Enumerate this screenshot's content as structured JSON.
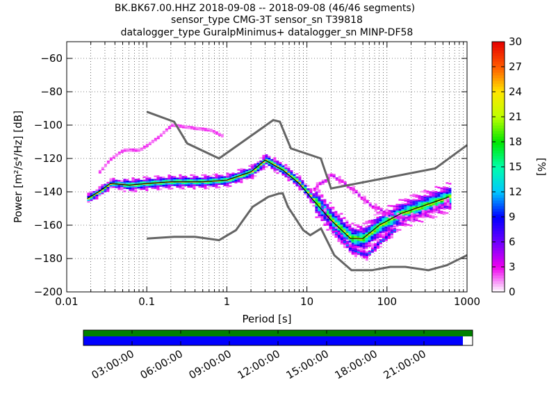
{
  "title": {
    "line1": "BK.BK67.00.HHZ   2018-09-08 -- 2018-09-08  (46/46 segments)",
    "line2": "sensor_type CMG-3T sensor_sn T39818",
    "line3": "datalogger_type GuralpMinimus+ datalogger_sn MINP-DF58"
  },
  "colors": {
    "model_lines": "#646464",
    "coverage_green": "#008000",
    "coverage_blue": "#0000ff"
  },
  "chart_data": {
    "type": "heatmap",
    "title": "BK.BK67.00.HHZ   2018-09-08 -- 2018-09-08  (46/46 segments)",
    "xlabel": "Period [s]",
    "ylabel": "Power [m²/s⁴/Hz] [dB]",
    "x_scale": "log",
    "xlim": [
      0.01,
      1000
    ],
    "ylim": [
      -200,
      -50
    ],
    "x_ticks": [
      0.01,
      0.1,
      1,
      10,
      100,
      1000
    ],
    "x_tick_labels": [
      "0.01",
      "0.1",
      "1",
      "10",
      "100",
      "1000"
    ],
    "y_ticks": [
      -200,
      -180,
      -160,
      -140,
      -120,
      -100,
      -80,
      -60
    ],
    "y_tick_labels": [
      "−200",
      "−180",
      "−160",
      "−140",
      "−120",
      "−100",
      "−80",
      "−60"
    ],
    "grid": true,
    "colorbar": {
      "label": "[%]",
      "range": [
        0,
        30
      ],
      "ticks": [
        0,
        3,
        6,
        9,
        12,
        15,
        18,
        21,
        24,
        27,
        30
      ],
      "tick_labels": [
        "0",
        "3",
        "6",
        "9",
        "12",
        "15",
        "18",
        "21",
        "24",
        "27",
        "30"
      ]
    },
    "high_noise_model": [
      [
        0.1,
        -92
      ],
      [
        0.22,
        -98
      ],
      [
        0.32,
        -111
      ],
      [
        0.8,
        -120
      ],
      [
        3.8,
        -97
      ],
      [
        4.6,
        -98
      ],
      [
        6.3,
        -114
      ],
      [
        14.9,
        -120
      ],
      [
        20,
        -138
      ],
      [
        400,
        -126
      ],
      [
        1000,
        -112
      ]
    ],
    "low_noise_model": [
      [
        0.1,
        -168
      ],
      [
        0.22,
        -167
      ],
      [
        0.4,
        -167
      ],
      [
        0.8,
        -169
      ],
      [
        1.3,
        -163
      ],
      [
        2.1,
        -149
      ],
      [
        3.3,
        -143
      ],
      [
        4.5,
        -141
      ],
      [
        5.0,
        -141
      ],
      [
        5.8,
        -149
      ],
      [
        9.0,
        -163
      ],
      [
        11,
        -166
      ],
      [
        15,
        -162
      ],
      [
        22,
        -178
      ],
      [
        36,
        -187
      ],
      [
        65,
        -187
      ],
      [
        110,
        -185
      ],
      [
        170,
        -185
      ],
      [
        330,
        -187
      ],
      [
        560,
        -184
      ],
      [
        1000,
        -178
      ]
    ],
    "median_psd": [
      [
        0.018,
        -144
      ],
      [
        0.025,
        -140
      ],
      [
        0.035,
        -135
      ],
      [
        0.06,
        -136
      ],
      [
        0.1,
        -135
      ],
      [
        0.2,
        -134
      ],
      [
        0.5,
        -134
      ],
      [
        1,
        -133
      ],
      [
        2,
        -128
      ],
      [
        3,
        -121
      ],
      [
        5,
        -127
      ],
      [
        8,
        -135
      ],
      [
        12,
        -145
      ],
      [
        20,
        -157
      ],
      [
        35,
        -168
      ],
      [
        50,
        -168
      ],
      [
        80,
        -160
      ],
      [
        150,
        -153
      ],
      [
        300,
        -148
      ],
      [
        600,
        -143
      ]
    ],
    "upper_branch_psd": [
      [
        0.025,
        -128
      ],
      [
        0.035,
        -120
      ],
      [
        0.05,
        -115
      ],
      [
        0.08,
        -115
      ],
      [
        0.13,
        -108
      ],
      [
        0.2,
        -100
      ],
      [
        0.4,
        -102
      ],
      [
        0.6,
        -103
      ],
      [
        0.9,
        -107
      ]
    ],
    "upper_scatter_psd": [
      [
        12,
        -138
      ],
      [
        20,
        -130
      ],
      [
        35,
        -138
      ],
      [
        60,
        -148
      ],
      [
        100,
        -153
      ],
      [
        150,
        -156
      ],
      [
        250,
        -154
      ],
      [
        400,
        -150
      ],
      [
        600,
        -145
      ]
    ],
    "lower_spread_psd": [
      [
        15,
        -150
      ],
      [
        20,
        -162
      ],
      [
        35,
        -175
      ],
      [
        55,
        -178
      ],
      [
        80,
        -170
      ],
      [
        120,
        -163
      ]
    ],
    "time_axis": {
      "tick_labels": [
        "03:00:00",
        "06:00:00",
        "09:00:00",
        "12:00:00",
        "15:00:00",
        "18:00:00",
        "21:00:00"
      ],
      "data_coverage_end_fraction": 1.0,
      "processed_coverage_end_fraction": 0.975
    }
  }
}
